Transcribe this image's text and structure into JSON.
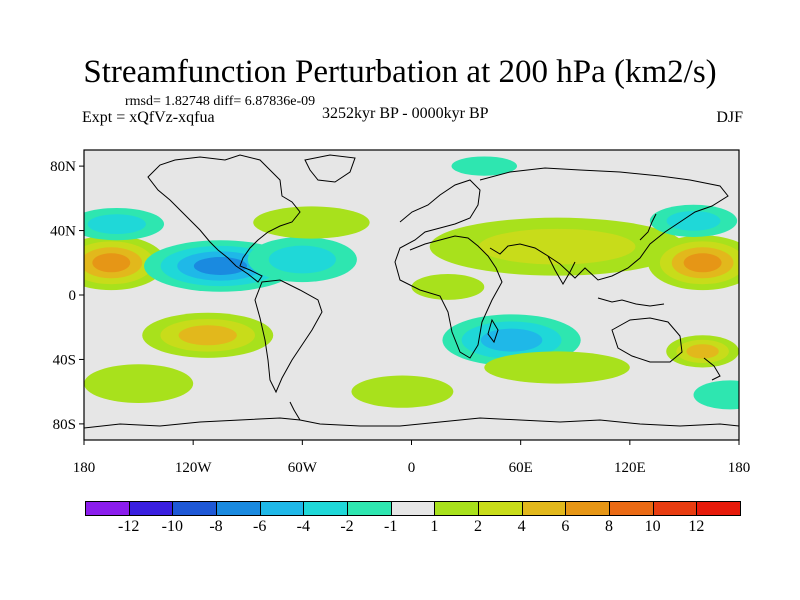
{
  "title": "Streamfunction Perturbation at 200 hPa (km2/s)",
  "stats": "rmsd= 1.82748 diff= 6.87836e-09",
  "experiment": "Expt = xQfVz-xqfua",
  "period": "3252kyr BP - 0000kyr BP",
  "season": "DJF",
  "map": {
    "lat_ticks": [
      "80N",
      "40N",
      "0",
      "40S",
      "80S"
    ],
    "lon_ticks": [
      "180",
      "120W",
      "60W",
      "0",
      "60E",
      "120E",
      "180"
    ]
  },
  "colorbar": {
    "labels": [
      "-12",
      "-10",
      "-8",
      "-6",
      "-4",
      "-2",
      "-1",
      "1",
      "2",
      "4",
      "6",
      "8",
      "10",
      "12"
    ],
    "colors": [
      "#8b1ded",
      "#3a1fe0",
      "#1e58d6",
      "#1a8ae0",
      "#1fb8e8",
      "#1fd8d8",
      "#2ee6b0",
      "#e6e6e6",
      "#a8e11c",
      "#c8dc1a",
      "#e2b81c",
      "#e69616",
      "#ea6a14",
      "#e83c10",
      "#e61a0a"
    ]
  },
  "anomalies": [
    {
      "lon": -165,
      "lat": 20,
      "rlon": 30,
      "rlat": 17,
      "level": 4
    },
    {
      "lon": -162,
      "lat": 44,
      "rlon": 26,
      "rlat": 10,
      "level": -2
    },
    {
      "lon": -105,
      "lat": 18,
      "rlon": 42,
      "rlat": 16,
      "level": -4
    },
    {
      "lon": -60,
      "lat": 22,
      "rlon": 30,
      "rlat": 14,
      "level": -2
    },
    {
      "lon": -112,
      "lat": -25,
      "rlon": 36,
      "rlat": 14,
      "level": 3
    },
    {
      "lon": -55,
      "lat": 45,
      "rlon": 32,
      "rlat": 10,
      "level": 1
    },
    {
      "lon": -150,
      "lat": -55,
      "rlon": 30,
      "rlat": 12,
      "level": 1
    },
    {
      "lon": -5,
      "lat": -60,
      "rlon": 28,
      "rlat": 10,
      "level": 1
    },
    {
      "lon": 20,
      "lat": 5,
      "rlon": 20,
      "rlat": 8,
      "level": 1
    },
    {
      "lon": 55,
      "lat": -28,
      "rlon": 38,
      "rlat": 16,
      "level": -3
    },
    {
      "lon": 80,
      "lat": 30,
      "rlon": 70,
      "rlat": 18,
      "level": 2
    },
    {
      "lon": 160,
      "lat": 20,
      "rlon": 30,
      "rlat": 17,
      "level": 4
    },
    {
      "lon": 155,
      "lat": 46,
      "rlon": 24,
      "rlat": 10,
      "level": -2
    },
    {
      "lon": 160,
      "lat": -35,
      "rlon": 20,
      "rlat": 10,
      "level": 3
    },
    {
      "lon": 175,
      "lat": -62,
      "rlon": 20,
      "rlat": 9,
      "level": -1
    },
    {
      "lon": 80,
      "lat": -45,
      "rlon": 40,
      "rlat": 10,
      "level": 1
    },
    {
      "lon": 40,
      "lat": 80,
      "rlon": 18,
      "rlat": 6,
      "level": -1
    }
  ]
}
